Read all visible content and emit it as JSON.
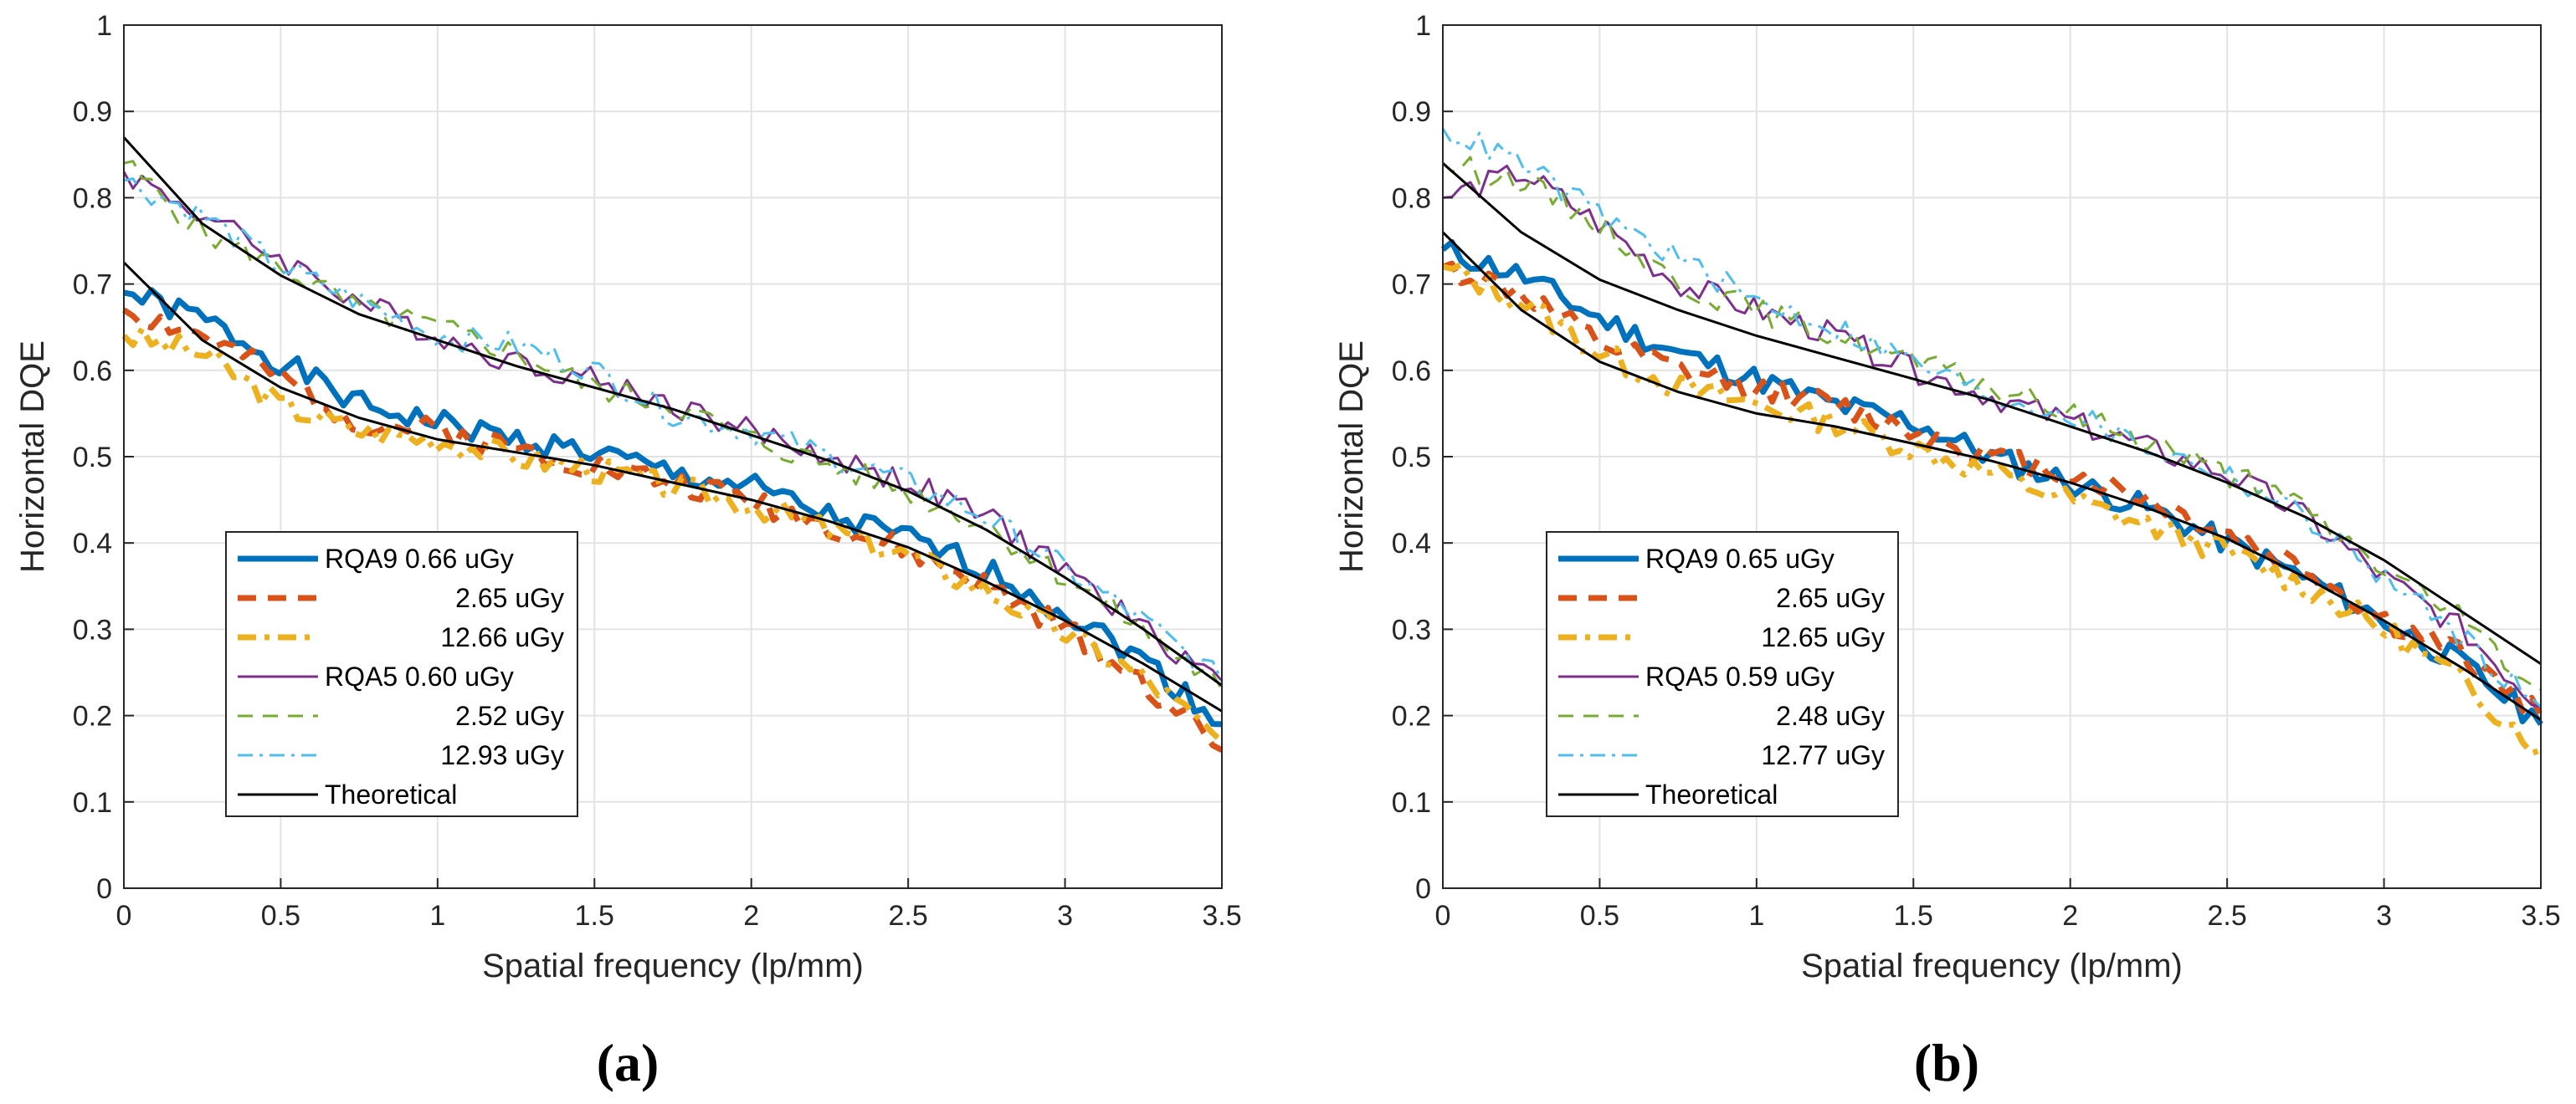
{
  "chart_data": [
    {
      "type": "line",
      "panel_label": "(a)",
      "xlabel": "Spatial frequency (lp/mm)",
      "ylabel": "Horizontal DQE",
      "xlim": [
        0,
        3.5
      ],
      "ylim": [
        0,
        1
      ],
      "xticks": [
        "0",
        "0.5",
        "1",
        "1.5",
        "2",
        "2.5",
        "3",
        "3.5"
      ],
      "yticks": [
        "0",
        "0.1",
        "0.2",
        "0.3",
        "0.4",
        "0.5",
        "0.6",
        "0.7",
        "0.8",
        "0.9",
        "1"
      ],
      "grid": true,
      "legend_position": "bottom-left",
      "series": [
        {
          "name": "RQA9 0.66 uGy",
          "legend_label": "RQA9 0.66 uGy",
          "style": "solid-thick",
          "color": "#0072BD",
          "x": [
            0,
            0.25,
            0.5,
            0.75,
            1,
            1.25,
            1.5,
            1.75,
            2,
            2.25,
            2.5,
            2.75,
            3,
            3.25,
            3.5
          ],
          "values": [
            0.69,
            0.66,
            0.61,
            0.56,
            0.54,
            0.52,
            0.505,
            0.48,
            0.465,
            0.43,
            0.405,
            0.37,
            0.32,
            0.265,
            0.19
          ]
        },
        {
          "name": "2.65 uGy",
          "legend_label": "2.65 uGy",
          "style": "dashed-thick",
          "color": "#D95319",
          "x": [
            0,
            0.25,
            0.5,
            0.75,
            1,
            1.25,
            1.5,
            1.75,
            2,
            2.25,
            2.5,
            2.75,
            3,
            3.25,
            3.5
          ],
          "values": [
            0.67,
            0.64,
            0.59,
            0.54,
            0.53,
            0.51,
            0.49,
            0.47,
            0.45,
            0.42,
            0.39,
            0.35,
            0.3,
            0.24,
            0.16
          ]
        },
        {
          "name": "12.66 uGy",
          "legend_label": "12.66 uGy",
          "style": "dashdot-thick",
          "color": "#EDB120",
          "x": [
            0,
            0.25,
            0.5,
            0.75,
            1,
            1.25,
            1.5,
            1.75,
            2,
            2.25,
            2.5,
            2.75,
            3,
            3.25,
            3.5
          ],
          "values": [
            0.64,
            0.62,
            0.56,
            0.53,
            0.52,
            0.5,
            0.485,
            0.465,
            0.445,
            0.415,
            0.385,
            0.345,
            0.295,
            0.245,
            0.17
          ]
        },
        {
          "name": "RQA5 0.60 uGy",
          "legend_label": "RQA5 0.60 uGy",
          "style": "solid-thin",
          "color": "#7E2F8E",
          "x": [
            0,
            0.25,
            0.5,
            0.75,
            1,
            1.25,
            1.5,
            1.75,
            2,
            2.25,
            2.5,
            2.75,
            3,
            3.25,
            3.5
          ],
          "values": [
            0.83,
            0.78,
            0.73,
            0.68,
            0.64,
            0.61,
            0.59,
            0.56,
            0.53,
            0.5,
            0.47,
            0.43,
            0.37,
            0.3,
            0.24
          ]
        },
        {
          "name": "2.52 uGy",
          "legend_label": "2.52 uGy",
          "style": "dashed-thin",
          "color": "#77AC30",
          "x": [
            0,
            0.25,
            0.5,
            0.75,
            1,
            1.25,
            1.5,
            1.75,
            2,
            2.25,
            2.5,
            2.75,
            3,
            3.25,
            3.5
          ],
          "values": [
            0.84,
            0.76,
            0.72,
            0.67,
            0.65,
            0.62,
            0.58,
            0.56,
            0.52,
            0.49,
            0.46,
            0.42,
            0.36,
            0.3,
            0.23
          ]
        },
        {
          "name": "12.93 uGy",
          "legend_label": "12.93 uGy",
          "style": "dashdot-thin",
          "color": "#4DBEEE",
          "x": [
            0,
            0.25,
            0.5,
            0.75,
            1,
            1.25,
            1.5,
            1.75,
            2,
            2.25,
            2.5,
            2.75,
            3,
            3.25,
            3.5
          ],
          "values": [
            0.82,
            0.78,
            0.72,
            0.68,
            0.64,
            0.63,
            0.6,
            0.55,
            0.53,
            0.5,
            0.47,
            0.43,
            0.37,
            0.31,
            0.24
          ]
        }
      ],
      "theoretical": {
        "legend_label": "Theoretical",
        "color": "#000000",
        "curves": [
          {
            "x": [
              0,
              0.25,
              0.5,
              0.75,
              1,
              1.25,
              1.5,
              1.75,
              2,
              2.25,
              2.5,
              2.75,
              3,
              3.25,
              3.5
            ],
            "values": [
              0.87,
              0.77,
              0.71,
              0.665,
              0.635,
              0.605,
              0.58,
              0.555,
              0.525,
              0.495,
              0.46,
              0.415,
              0.36,
              0.3,
              0.235
            ]
          },
          {
            "x": [
              0,
              0.25,
              0.5,
              0.75,
              1,
              1.25,
              1.5,
              1.75,
              2,
              2.25,
              2.5,
              2.75,
              3,
              3.25,
              3.5
            ],
            "values": [
              0.725,
              0.635,
              0.58,
              0.545,
              0.52,
              0.505,
              0.49,
              0.47,
              0.45,
              0.425,
              0.395,
              0.355,
              0.31,
              0.26,
              0.205
            ]
          }
        ]
      }
    },
    {
      "type": "line",
      "panel_label": "(b)",
      "xlabel": "Spatial frequency (lp/mm)",
      "ylabel": "Horizontal DQE",
      "xlim": [
        0,
        3.5
      ],
      "ylim": [
        0,
        1
      ],
      "xticks": [
        "0",
        "0.5",
        "1",
        "1.5",
        "2",
        "2.5",
        "3",
        "3.5"
      ],
      "yticks": [
        "0",
        "0.1",
        "0.2",
        "0.3",
        "0.4",
        "0.5",
        "0.6",
        "0.7",
        "0.8",
        "0.9",
        "1"
      ],
      "grid": true,
      "legend_position": "bottom-left",
      "series": [
        {
          "name": "RQA9 0.65 uGy",
          "legend_label": "RQA9 0.65 uGy",
          "style": "solid-thick",
          "color": "#0072BD",
          "x": [
            0,
            0.25,
            0.5,
            0.75,
            1,
            1.25,
            1.5,
            1.75,
            2,
            2.25,
            2.5,
            2.75,
            3,
            3.25,
            3.5
          ],
          "values": [
            0.74,
            0.71,
            0.66,
            0.62,
            0.59,
            0.56,
            0.54,
            0.5,
            0.47,
            0.44,
            0.4,
            0.36,
            0.31,
            0.26,
            0.19
          ]
        },
        {
          "name": "2.65 uGy",
          "legend_label": "2.65 uGy",
          "style": "dashed-thick",
          "color": "#D95319",
          "x": [
            0,
            0.25,
            0.5,
            0.75,
            1,
            1.25,
            1.5,
            1.75,
            2,
            2.25,
            2.5,
            2.75,
            3,
            3.25,
            3.5
          ],
          "values": [
            0.72,
            0.69,
            0.63,
            0.6,
            0.58,
            0.56,
            0.53,
            0.5,
            0.48,
            0.45,
            0.41,
            0.37,
            0.31,
            0.27,
            0.2
          ]
        },
        {
          "name": "12.65 uGy",
          "legend_label": "12.65 uGy",
          "style": "dashdot-thick",
          "color": "#EDB120",
          "x": [
            0,
            0.25,
            0.5,
            0.75,
            1,
            1.25,
            1.5,
            1.75,
            2,
            2.25,
            2.5,
            2.75,
            3,
            3.25,
            3.5
          ],
          "values": [
            0.72,
            0.68,
            0.62,
            0.58,
            0.56,
            0.54,
            0.51,
            0.48,
            0.45,
            0.42,
            0.39,
            0.35,
            0.3,
            0.24,
            0.16
          ]
        },
        {
          "name": "RQA5 0.59 uGy",
          "legend_label": "RQA5 0.59 uGy",
          "style": "solid-thin",
          "color": "#7E2F8E",
          "x": [
            0,
            0.25,
            0.5,
            0.75,
            1,
            1.25,
            1.5,
            1.75,
            2,
            2.25,
            2.5,
            2.75,
            3,
            3.25,
            3.5
          ],
          "values": [
            0.8,
            0.83,
            0.77,
            0.7,
            0.67,
            0.64,
            0.6,
            0.57,
            0.54,
            0.51,
            0.48,
            0.43,
            0.36,
            0.3,
            0.21
          ]
        },
        {
          "name": "2.48 uGy",
          "legend_label": "2.48 uGy",
          "style": "dashed-thin",
          "color": "#77AC30",
          "x": [
            0,
            0.25,
            0.5,
            0.75,
            1,
            1.25,
            1.5,
            1.75,
            2,
            2.25,
            2.5,
            2.75,
            3,
            3.25,
            3.5
          ],
          "values": [
            0.84,
            0.82,
            0.77,
            0.7,
            0.67,
            0.64,
            0.61,
            0.58,
            0.55,
            0.52,
            0.48,
            0.44,
            0.37,
            0.31,
            0.23
          ]
        },
        {
          "name": "12.77 uGy",
          "legend_label": "12.77 uGy",
          "style": "dashdot-thin",
          "color": "#4DBEEE",
          "x": [
            0,
            0.25,
            0.5,
            0.75,
            1,
            1.25,
            1.5,
            1.75,
            2,
            2.25,
            2.5,
            2.75,
            3,
            3.25,
            3.5
          ],
          "values": [
            0.88,
            0.84,
            0.78,
            0.73,
            0.68,
            0.65,
            0.61,
            0.57,
            0.55,
            0.51,
            0.48,
            0.43,
            0.36,
            0.29,
            0.21
          ]
        }
      ],
      "theoretical": {
        "legend_label": "Theoretical",
        "color": "#000000",
        "curves": [
          {
            "x": [
              0,
              0.25,
              0.5,
              0.75,
              1,
              1.25,
              1.5,
              1.75,
              2,
              2.25,
              2.5,
              2.75,
              3,
              3.25,
              3.5
            ],
            "values": [
              0.84,
              0.76,
              0.705,
              0.67,
              0.64,
              0.615,
              0.59,
              0.565,
              0.535,
              0.505,
              0.47,
              0.43,
              0.38,
              0.32,
              0.26
            ]
          },
          {
            "x": [
              0,
              0.25,
              0.5,
              0.75,
              1,
              1.25,
              1.5,
              1.75,
              2,
              2.25,
              2.5,
              2.75,
              3,
              3.25,
              3.5
            ],
            "values": [
              0.76,
              0.67,
              0.61,
              0.575,
              0.55,
              0.535,
              0.515,
              0.495,
              0.47,
              0.44,
              0.405,
              0.36,
              0.31,
              0.255,
              0.195
            ]
          }
        ]
      }
    }
  ]
}
